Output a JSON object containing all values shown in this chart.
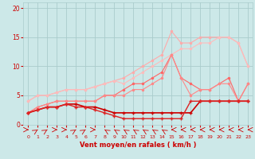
{
  "x": [
    0,
    1,
    2,
    3,
    4,
    5,
    6,
    7,
    8,
    9,
    10,
    11,
    12,
    13,
    14,
    15,
    16,
    17,
    18,
    19,
    20,
    21,
    22,
    23
  ],
  "line_upper1": [
    4,
    5,
    5,
    5.5,
    6,
    6,
    6,
    6.5,
    7,
    7.5,
    8,
    9,
    10,
    11,
    12,
    16,
    14,
    14,
    15,
    15,
    15,
    15,
    14,
    10
  ],
  "line_upper2": [
    4,
    5,
    5,
    5.5,
    6,
    6,
    6,
    6.5,
    7,
    7.5,
    7,
    8,
    9,
    10,
    11,
    12,
    13,
    13,
    14,
    14,
    15,
    15,
    14,
    10
  ],
  "line_mid1": [
    2,
    3,
    3.5,
    4,
    4,
    4,
    4,
    4,
    5,
    5,
    6,
    7,
    7,
    8,
    9,
    12,
    8,
    7,
    6,
    6,
    7,
    8,
    4,
    7
  ],
  "line_mid2": [
    2,
    3,
    3.5,
    4,
    4,
    4,
    4,
    4,
    5,
    5,
    5,
    6,
    6,
    7,
    8,
    12,
    8,
    5,
    6,
    6,
    7,
    7,
    4,
    7
  ],
  "line_low1": [
    2,
    2.5,
    3,
    3,
    3.5,
    3.5,
    3,
    3,
    2.5,
    2,
    2,
    2,
    2,
    2,
    2,
    2,
    2,
    2,
    4,
    4,
    4,
    4,
    4,
    4
  ],
  "line_low2": [
    2,
    2.5,
    3,
    3,
    3.5,
    3,
    3,
    2.5,
    2,
    1.5,
    1,
    1,
    1,
    1,
    1,
    1,
    1,
    4,
    4,
    4,
    4,
    4,
    4,
    4
  ],
  "background": "#cce8e8",
  "grid_color": "#aacccc",
  "color_upper1": "#ffaaaa",
  "color_upper2": "#ffbbbb",
  "color_mid1": "#ff6666",
  "color_mid2": "#ff8888",
  "color_low1": "#cc0000",
  "color_low2": "#dd2222",
  "yticks": [
    0,
    5,
    10,
    15,
    20
  ],
  "xlabel": "Vent moyen/en rafales ( km/h )",
  "ylim": [
    0,
    21
  ],
  "xlim": [
    -0.5,
    23.5
  ],
  "tick_color": "#cc0000",
  "label_color": "#cc0000"
}
